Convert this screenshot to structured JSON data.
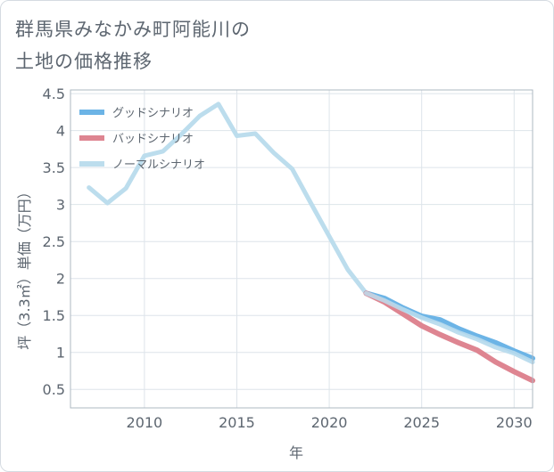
{
  "chart_data": {
    "type": "line",
    "title": [
      "群馬県みなかみ町阿能川の",
      "土地の価格推移"
    ],
    "xlabel": "年",
    "ylabel": "坪（3.3㎡）単価（万円）",
    "xlim": [
      2006,
      2031
    ],
    "ylim": [
      0.25,
      4.55
    ],
    "xticks": [
      2010,
      2015,
      2020,
      2025,
      2030
    ],
    "yticks": [
      0.5,
      1,
      1.5,
      2,
      2.5,
      3,
      3.5,
      4,
      4.5
    ],
    "ytick_labels": [
      "0.5",
      "1",
      "1.5",
      "2",
      "2.5",
      "3",
      "3.5",
      "4",
      "4.5"
    ],
    "legend_position": "top-left",
    "series": [
      {
        "name": "グッドシナリオ",
        "color": "#6cb4e6",
        "x": [
          2022,
          2023,
          2024,
          2025,
          2026,
          2027,
          2028,
          2029,
          2030,
          2031
        ],
        "values": [
          1.8,
          1.73,
          1.6,
          1.49,
          1.44,
          1.32,
          1.22,
          1.13,
          1.02,
          0.92
        ]
      },
      {
        "name": "バッドシナリオ",
        "color": "#de8591",
        "x": [
          2022,
          2023,
          2024,
          2025,
          2026,
          2027,
          2028,
          2029,
          2030,
          2031
        ],
        "values": [
          1.8,
          1.68,
          1.52,
          1.36,
          1.24,
          1.13,
          1.03,
          0.87,
          0.74,
          0.62
        ]
      },
      {
        "name": "ノーマルシナリオ",
        "color": "#bcdded",
        "x": [
          2007,
          2008,
          2009,
          2010,
          2011,
          2012,
          2013,
          2014,
          2015,
          2016,
          2017,
          2018,
          2019,
          2020,
          2021,
          2022,
          2023,
          2024,
          2025,
          2026,
          2027,
          2028,
          2029,
          2030,
          2031
        ],
        "values": [
          3.23,
          3.02,
          3.22,
          3.66,
          3.72,
          3.95,
          4.2,
          4.36,
          3.93,
          3.96,
          3.7,
          3.48,
          3.02,
          2.57,
          2.12,
          1.8,
          1.7,
          1.58,
          1.47,
          1.38,
          1.27,
          1.18,
          1.07,
          0.99,
          0.87
        ]
      }
    ]
  }
}
